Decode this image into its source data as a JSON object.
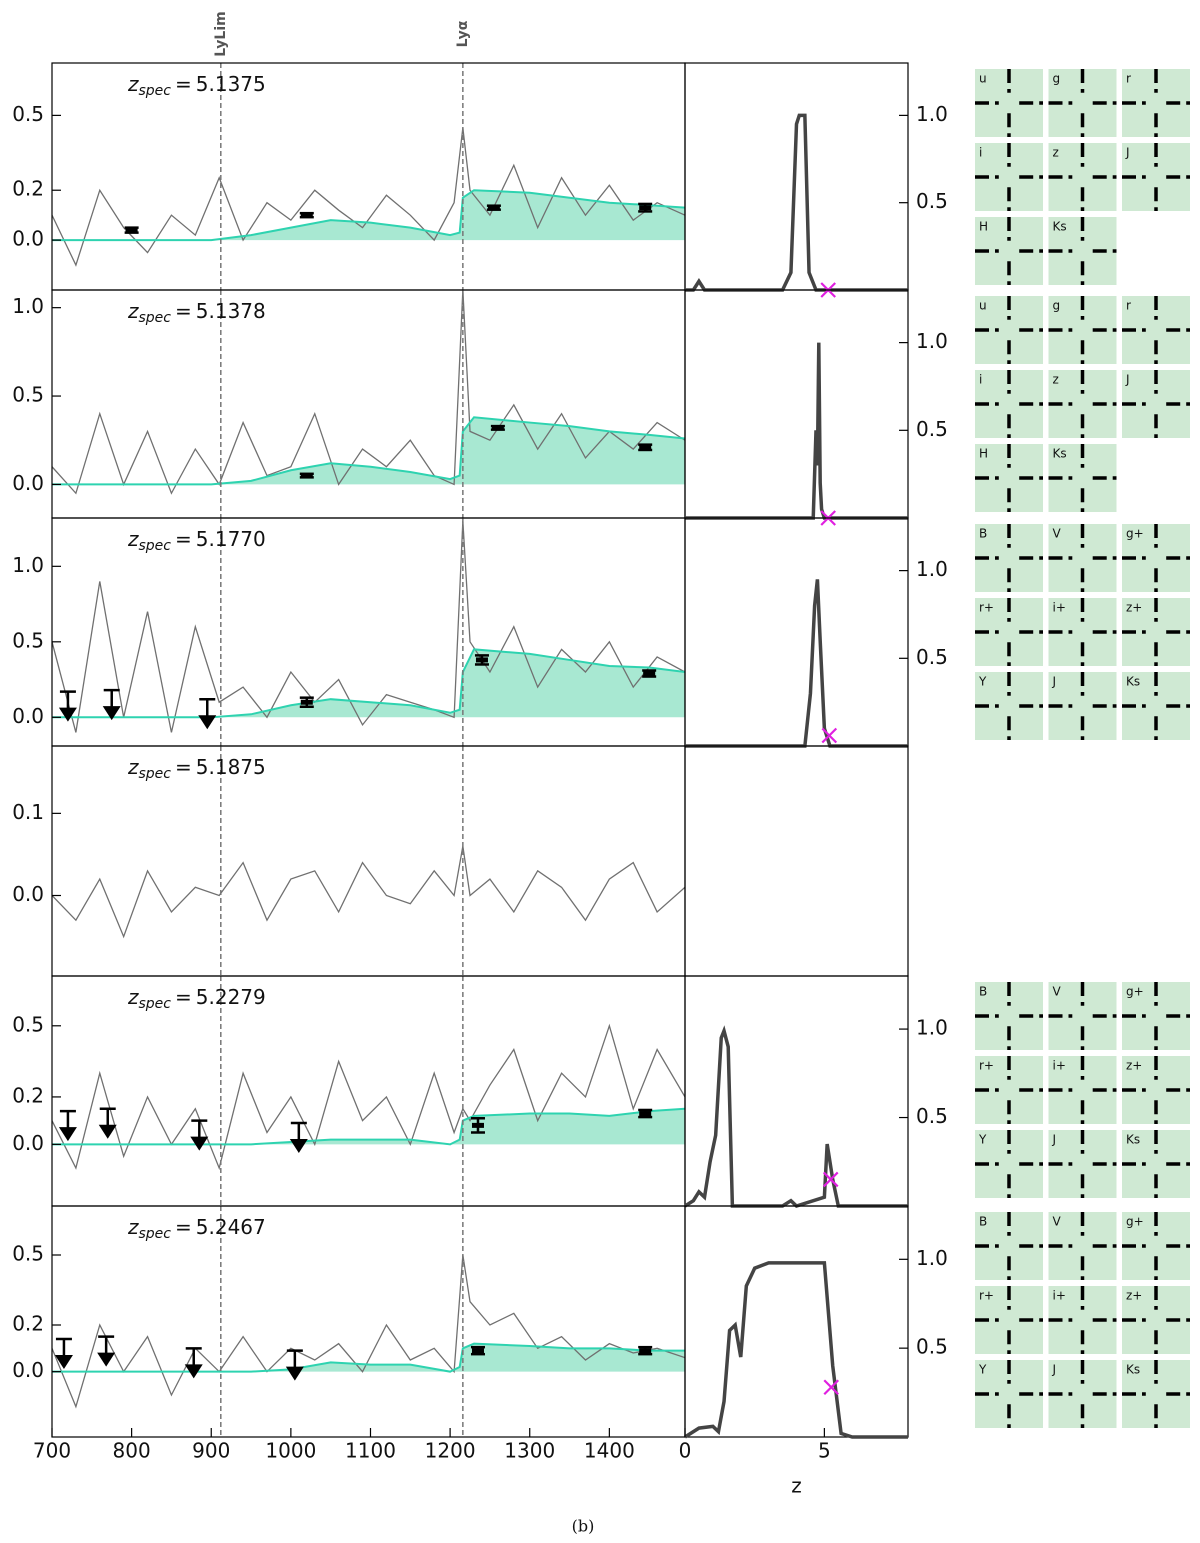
{
  "chart_data": {
    "type": "line",
    "xlim": [
      700,
      1495
    ],
    "xticks": [
      700,
      800,
      900,
      1000,
      1100,
      1200,
      1300,
      1400
    ],
    "pz_xlim": [
      0,
      8
    ],
    "pz_xticks": [
      0,
      5
    ],
    "pz_ylim": [
      0,
      1.3
    ],
    "pz_xlabel": "z",
    "caption": "(b)",
    "lines": [
      {
        "label": "LyLim",
        "value": 912
      },
      {
        "label": "Lyα",
        "value": 1216
      }
    ],
    "zspec_symbol": "z",
    "zspec_sub": "spec",
    "zspec_eq": "=",
    "spectrum_color": "#707070",
    "model_color": "#2ed3b0",
    "model_fill": "#a8e8d2",
    "pz_color": "#444444",
    "marker_color": "#e020e0",
    "point_color": "#000000",
    "spectrum_x": [
      700,
      730,
      760,
      790,
      820,
      850,
      880,
      910,
      940,
      970,
      1000,
      1030,
      1060,
      1090,
      1120,
      1150,
      1180,
      1205,
      1216,
      1225,
      1250,
      1280,
      1310,
      1340,
      1370,
      1400,
      1430,
      1460,
      1495
    ],
    "model_x": [
      700,
      900,
      950,
      1000,
      1050,
      1100,
      1150,
      1200,
      1212,
      1216,
      1230,
      1300,
      1350,
      1400,
      1450,
      1495
    ],
    "panels": [
      {
        "zspec": 5.1375,
        "zspec_label": "5.1375",
        "ylim": [
          -0.2,
          0.71
        ],
        "yticks": [
          {
            "value": 0,
            "label": "0.0"
          },
          0.2,
          0.5
        ],
        "pz_yticks": [
          0.5,
          {
            "value": 1,
            "label": "1.0"
          }
        ],
        "spectrum": [
          0.1,
          -0.1,
          0.2,
          0.05,
          -0.05,
          0.1,
          0.02,
          0.25,
          0.0,
          0.15,
          0.08,
          0.2,
          0.12,
          0.05,
          0.18,
          0.1,
          0.0,
          0.15,
          0.45,
          0.2,
          0.1,
          0.3,
          0.05,
          0.25,
          0.1,
          0.22,
          0.08,
          0.15,
          0.1
        ],
        "model": [
          0,
          0,
          0.02,
          0.05,
          0.08,
          0.07,
          0.05,
          0.02,
          0.03,
          0.17,
          0.2,
          0.19,
          0.17,
          0.15,
          0.14,
          0.13
        ],
        "points": [
          {
            "x": 800,
            "y": 0.04,
            "err": 0.01
          },
          {
            "x": 1020,
            "y": 0.1,
            "err": 0.008
          },
          {
            "x": 1255,
            "y": 0.13,
            "err": 0.008
          },
          {
            "x": 1445,
            "y": 0.13,
            "err": 0.015
          }
        ],
        "limits": [],
        "pz_x": [
          0,
          0.3,
          0.5,
          0.7,
          3.5,
          3.8,
          4.0,
          4.1,
          4.3,
          4.45,
          4.7,
          8
        ],
        "pz": [
          0,
          0,
          0.05,
          0,
          0,
          0.1,
          0.95,
          1.0,
          1.0,
          0.1,
          0,
          0
        ],
        "zspec_pz": 0,
        "thumbs": [
          "u",
          "g",
          "r",
          "i",
          "z",
          "J",
          "H",
          "Ks"
        ]
      },
      {
        "zspec": 5.1378,
        "zspec_label": "5.1378",
        "ylim": [
          -0.19,
          1.1
        ],
        "yticks": [
          {
            "value": 0,
            "label": "0.0"
          },
          0.5,
          {
            "value": 1,
            "label": "1.0"
          }
        ],
        "pz_yticks": [
          0.5,
          {
            "value": 1,
            "label": "1.0"
          }
        ],
        "spectrum": [
          0.1,
          -0.05,
          0.4,
          0.0,
          0.3,
          -0.05,
          0.2,
          0.0,
          0.35,
          0.05,
          0.1,
          0.4,
          0.0,
          0.2,
          0.1,
          0.25,
          0.05,
          0.0,
          1.1,
          0.3,
          0.25,
          0.45,
          0.2,
          0.4,
          0.15,
          0.3,
          0.2,
          0.35,
          0.25
        ],
        "model": [
          0,
          0,
          0.02,
          0.08,
          0.12,
          0.1,
          0.07,
          0.03,
          0.05,
          0.3,
          0.38,
          0.35,
          0.33,
          0.3,
          0.28,
          0.26
        ],
        "points": [
          {
            "x": 1020,
            "y": 0.05,
            "err": 0.01
          },
          {
            "x": 1260,
            "y": 0.32,
            "err": 0.01
          },
          {
            "x": 1445,
            "y": 0.21,
            "err": 0.015
          }
        ],
        "limits": [],
        "pz_x": [
          0,
          4.6,
          4.7,
          4.75,
          4.8,
          4.85,
          4.9,
          5.0,
          8
        ],
        "pz": [
          0,
          0,
          0.5,
          0.3,
          1.0,
          0.2,
          0.05,
          0,
          0
        ],
        "zspec_pz": 0,
        "thumbs": [
          "u",
          "g",
          "r",
          "i",
          "z",
          "J",
          "H",
          "Ks"
        ]
      },
      {
        "zspec": 5.177,
        "zspec_label": "5.1770",
        "ylim": [
          -0.19,
          1.32
        ],
        "yticks": [
          {
            "value": 0,
            "label": "0.0"
          },
          0.5,
          {
            "value": 1,
            "label": "1.0"
          }
        ],
        "pz_yticks": [
          0.5,
          {
            "value": 1,
            "label": "1.0"
          }
        ],
        "spectrum": [
          0.5,
          -0.1,
          0.9,
          0.0,
          0.7,
          -0.1,
          0.6,
          0.1,
          0.2,
          0.0,
          0.3,
          0.1,
          0.25,
          -0.05,
          0.15,
          0.1,
          0.05,
          0.0,
          1.3,
          0.5,
          0.3,
          0.6,
          0.2,
          0.45,
          0.3,
          0.5,
          0.2,
          0.4,
          0.3
        ],
        "model": [
          0,
          0,
          0.02,
          0.08,
          0.12,
          0.1,
          0.08,
          0.03,
          0.05,
          0.3,
          0.45,
          0.42,
          0.38,
          0.34,
          0.33,
          0.3
        ],
        "points": [
          {
            "x": 1020,
            "y": 0.1,
            "err": 0.03
          },
          {
            "x": 1240,
            "y": 0.38,
            "err": 0.03
          },
          {
            "x": 1450,
            "y": 0.29,
            "err": 0.02
          }
        ],
        "limits": [
          {
            "x": 720,
            "y": 0.17
          },
          {
            "x": 775,
            "y": 0.18
          },
          {
            "x": 895,
            "y": 0.12
          }
        ],
        "pz_x": [
          0,
          4.3,
          4.5,
          4.65,
          4.75,
          4.85,
          5.0,
          5.2,
          8
        ],
        "pz": [
          0,
          0,
          0.3,
          0.8,
          0.95,
          0.6,
          0.1,
          0,
          0
        ],
        "zspec_pz": 0.06,
        "thumbs": [
          "B",
          "V",
          "g+",
          "r+",
          "i+",
          "z+",
          "Y",
          "J",
          "Ks"
        ]
      },
      {
        "zspec": 5.1875,
        "zspec_label": "5.1875",
        "ylim": [
          -0.098,
          0.182
        ],
        "yticks": [
          {
            "value": 0,
            "label": "0.0"
          },
          0.1
        ],
        "pz_yticks": [],
        "spectrum": [
          0.0,
          -0.03,
          0.02,
          -0.05,
          0.03,
          -0.02,
          0.01,
          0.0,
          0.04,
          -0.03,
          0.02,
          0.03,
          -0.02,
          0.04,
          0.0,
          -0.01,
          0.03,
          0.0,
          0.06,
          0.0,
          0.02,
          -0.02,
          0.03,
          0.01,
          -0.03,
          0.02,
          0.04,
          -0.02,
          0.01
        ],
        "points": [],
        "limits": [],
        "thumbs": []
      },
      {
        "zspec": 5.2279,
        "zspec_label": "5.2279",
        "ylim": [
          -0.26,
          0.71
        ],
        "yticks": [
          {
            "value": 0,
            "label": "0.0"
          },
          0.2,
          0.5
        ],
        "pz_yticks": [
          0.5,
          {
            "value": 1,
            "label": "1.0"
          }
        ],
        "spectrum": [
          0.1,
          -0.1,
          0.3,
          -0.05,
          0.2,
          0.0,
          0.15,
          -0.1,
          0.3,
          0.05,
          0.2,
          0.0,
          0.35,
          0.1,
          0.2,
          0.0,
          0.3,
          0.05,
          0.15,
          0.1,
          0.25,
          0.4,
          0.1,
          0.3,
          0.2,
          0.5,
          0.15,
          0.4,
          0.2
        ],
        "model": [
          0,
          0,
          0,
          0.01,
          0.02,
          0.02,
          0.02,
          0,
          0.02,
          0.1,
          0.12,
          0.13,
          0.13,
          0.12,
          0.14,
          0.15
        ],
        "points": [
          {
            "x": 1235,
            "y": 0.08,
            "err": 0.03
          },
          {
            "x": 1445,
            "y": 0.13,
            "err": 0.015
          }
        ],
        "limits": [
          {
            "x": 720,
            "y": 0.14
          },
          {
            "x": 770,
            "y": 0.15
          },
          {
            "x": 885,
            "y": 0.1
          },
          {
            "x": 1010,
            "y": 0.09
          }
        ],
        "pz_x": [
          0,
          0.3,
          0.5,
          0.7,
          0.9,
          1.1,
          1.3,
          1.4,
          1.55,
          1.7,
          3.5,
          3.8,
          4.0,
          5.0,
          5.1,
          5.3,
          5.5,
          8
        ],
        "pz": [
          0,
          0.03,
          0.08,
          0.05,
          0.25,
          0.4,
          0.95,
          0.99,
          0.9,
          0,
          0,
          0.03,
          0,
          0.05,
          0.35,
          0.15,
          0,
          0
        ],
        "zspec_pz": 0.15,
        "thumbs": [
          "B",
          "V",
          "g+",
          "r+",
          "i+",
          "z+",
          "Y",
          "J",
          "Ks"
        ]
      },
      {
        "zspec": 5.2467,
        "zspec_label": "5.2467",
        "ylim": [
          -0.28,
          0.71
        ],
        "yticks": [
          {
            "value": 0,
            "label": "0.0"
          },
          0.2,
          0.5
        ],
        "pz_yticks": [
          0.5,
          {
            "value": 1,
            "label": "1.0"
          }
        ],
        "spectrum": [
          0.1,
          -0.15,
          0.2,
          0.0,
          0.15,
          -0.1,
          0.1,
          0.0,
          0.15,
          0.0,
          0.1,
          0.05,
          0.12,
          0.0,
          0.2,
          0.05,
          0.1,
          0.0,
          0.5,
          0.3,
          0.2,
          0.25,
          0.1,
          0.15,
          0.05,
          0.12,
          0.08,
          0.1,
          0.06
        ],
        "model": [
          0,
          0,
          0,
          0.01,
          0.04,
          0.03,
          0.03,
          0,
          0.02,
          0.1,
          0.12,
          0.11,
          0.1,
          0.1,
          0.09,
          0.09
        ],
        "points": [
          {
            "x": 1235,
            "y": 0.09,
            "err": 0.015
          },
          {
            "x": 1445,
            "y": 0.09,
            "err": 0.015
          }
        ],
        "limits": [
          {
            "x": 715,
            "y": 0.14
          },
          {
            "x": 768,
            "y": 0.15
          },
          {
            "x": 878,
            "y": 0.1
          },
          {
            "x": 1005,
            "y": 0.09
          }
        ],
        "pz_x": [
          0,
          0.5,
          1.0,
          1.2,
          1.4,
          1.6,
          1.8,
          2.0,
          2.2,
          2.5,
          3.0,
          3.5,
          4.0,
          5.0,
          5.3,
          5.6,
          6.0,
          8
        ],
        "pz": [
          0,
          0.05,
          0.06,
          0.03,
          0.2,
          0.6,
          0.63,
          0.45,
          0.85,
          0.95,
          0.98,
          0.98,
          0.98,
          0.98,
          0.4,
          0.02,
          0,
          0
        ],
        "zspec_pz": 0.28,
        "thumbs": [
          "B",
          "V",
          "g+",
          "r+",
          "i+",
          "z+",
          "Y",
          "J",
          "Ks"
        ]
      }
    ]
  }
}
